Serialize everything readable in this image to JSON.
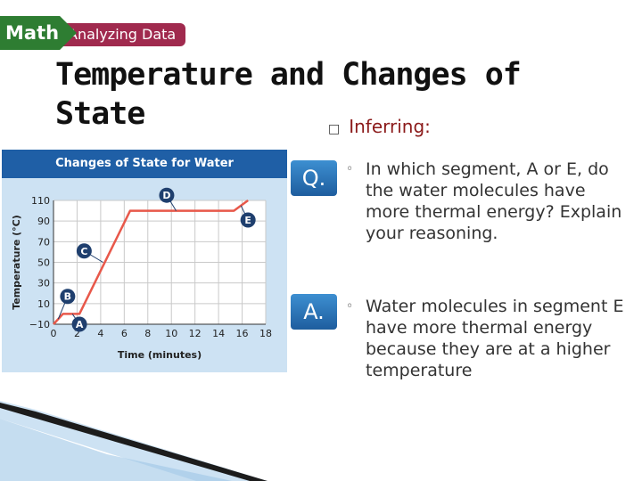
{
  "banner": {
    "math": "Math",
    "section": "Analyzing Data"
  },
  "title": "Temperature and Changes of State",
  "bullet": {
    "marker": "□",
    "label": "Inferring:"
  },
  "question": {
    "badge": "Q.",
    "marker": "◦",
    "text": "In which segment, A or E, do the water molecules have more thermal energy? Explain your reasoning."
  },
  "answer": {
    "badge": "A.",
    "marker": "◦",
    "text": "Water molecules in segment E have more thermal energy because they are at a higher temperature"
  },
  "chart_data": {
    "type": "line",
    "title": "Changes of State for Water",
    "xlabel": "Time (minutes)",
    "ylabel": "Temperature (°C)",
    "xlim": [
      0,
      18
    ],
    "ylim": [
      -10,
      110
    ],
    "xticks": [
      0,
      2,
      4,
      6,
      8,
      10,
      12,
      14,
      16,
      18
    ],
    "yticks": [
      -10,
      10,
      30,
      50,
      70,
      90,
      110
    ],
    "ytick_labels": [
      "−10",
      "10",
      "30",
      "50",
      "70",
      "90",
      "110"
    ],
    "grid": true,
    "series": [
      {
        "values_xy": [
          [
            0,
            -10
          ],
          [
            0.8,
            0
          ],
          [
            2.2,
            0
          ],
          [
            6.5,
            100
          ],
          [
            15.3,
            100
          ],
          [
            16.5,
            110
          ]
        ],
        "color": "#e8584a"
      }
    ],
    "segments": [
      {
        "label": "A",
        "x": 2.2,
        "y": -10,
        "target": [
          1.6,
          0
        ]
      },
      {
        "label": "B",
        "x": 1.2,
        "y": 17,
        "target": [
          0.4,
          -5
        ]
      },
      {
        "label": "C",
        "x": 2.6,
        "y": 61,
        "target": [
          4.2,
          50
        ]
      },
      {
        "label": "D",
        "x": 9.6,
        "y": 115,
        "target": [
          10.4,
          100
        ]
      },
      {
        "label": "E",
        "x": 16.5,
        "y": 91,
        "target": [
          15.9,
          105
        ]
      }
    ]
  }
}
